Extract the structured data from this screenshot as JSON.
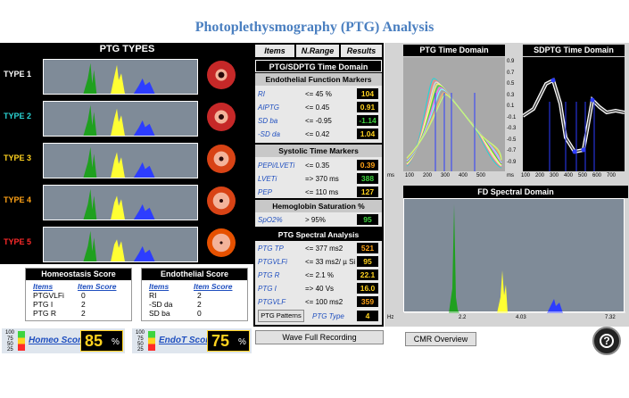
{
  "title": "Photoplethysmography (PTG) Analysis",
  "ptg_types": {
    "header": "PTG TYPES",
    "rows": [
      {
        "label": "TYPE 1",
        "color": "#ffffff",
        "vessel": "#c62828",
        "vessel_icon": "vessel-open-icon"
      },
      {
        "label": "TYPE 2",
        "color": "#2ad4d4",
        "vessel": "#c62828",
        "vessel_icon": "vessel-narrow-icon"
      },
      {
        "label": "TYPE 3",
        "color": "#ffd21f",
        "vessel": "#d84315",
        "vessel_icon": "vessel-plaque-icon"
      },
      {
        "label": "TYPE 4",
        "color": "#ffa216",
        "vessel": "#d84315",
        "vessel_icon": "vessel-plaque-icon"
      },
      {
        "label": "TYPE 5",
        "color": "#ff2a2a",
        "vessel": "#e65100",
        "vessel_icon": "vessel-blocked-icon"
      }
    ]
  },
  "homeostasis": {
    "header": "Homeostasis Score",
    "col_items": "Items",
    "col_score": "Item Score",
    "rows": [
      [
        "PTGVLFi",
        "0"
      ],
      [
        "PTG I",
        "2"
      ],
      [
        "PTG R",
        "2"
      ]
    ],
    "link": "Homeo Score",
    "score": "85",
    "unit": "%"
  },
  "endothelial": {
    "header": "Endothelial Score",
    "col_items": "Items",
    "col_score": "Item Score",
    "rows": [
      [
        "RI",
        "2"
      ],
      [
        "-SD da",
        "2"
      ],
      [
        "SD ba",
        "0"
      ]
    ],
    "link": "EndoT Score",
    "score": "75",
    "unit": "%"
  },
  "gauge": {
    "ticks": [
      "100",
      "75",
      "50",
      "25"
    ]
  },
  "tabs": [
    "Items",
    "N.Range",
    "Results"
  ],
  "time_domain_title": "PTG/SDPTG Time Domain",
  "endothelial_markers": {
    "title": "Endothelial Function Markers",
    "rows": [
      {
        "label": "RI",
        "cond": "<= 45 %",
        "value": "104",
        "color": "#ffd21f"
      },
      {
        "label": "AIPTG",
        "cond": "<= 0.45",
        "value": "0.91",
        "color": "#ffd21f"
      },
      {
        "label": "SD ba",
        "cond": "<= -0.95",
        "value": "-1.14",
        "color": "#3fd43f"
      },
      {
        "label": "-SD da",
        "cond": "<= 0.42",
        "value": "1.04",
        "color": "#ffd21f"
      }
    ]
  },
  "systolic_markers": {
    "title": "Systolic Time Markers",
    "rows": [
      {
        "label": "PEPi/LVETi",
        "cond": "<= 0.35",
        "value": "0.39",
        "color": "#ffa216"
      },
      {
        "label": "LVETi",
        "cond": "=> 370 ms",
        "value": "388",
        "color": "#3fd43f"
      },
      {
        "label": "PEP",
        "cond": "<= 110 ms",
        "value": "127",
        "color": "#ffd21f"
      }
    ]
  },
  "hemoglobin": {
    "title": "Hemoglobin Saturation %",
    "rows": [
      {
        "label": "SpO2%",
        "cond": "> 95%",
        "value": "95",
        "color": "#3fd43f"
      }
    ]
  },
  "spectral": {
    "title": "PTG Spectral Analysis",
    "rows": [
      {
        "label": "PTG TP",
        "cond": "<= 377 ms2",
        "value": "521",
        "color": "#ffa216"
      },
      {
        "label": "PTGVLFi",
        "cond": "<= 33 ms2/ µ Si",
        "value": "95",
        "color": "#ffd21f"
      },
      {
        "label": "PTG R",
        "cond": "<= 2.1 %",
        "value": "22.1",
        "color": "#ffd21f"
      },
      {
        "label": "PTG I",
        "cond": "=> 40 Vs",
        "value": "16.0",
        "color": "#ffd21f"
      },
      {
        "label": "PTGVLF",
        "cond": "<= 100 ms2",
        "value": "359",
        "color": "#ffa216"
      }
    ],
    "patterns_btn": "PTG Patterns",
    "type_label": "PTG Type",
    "type_value": "4"
  },
  "buttons": {
    "wave": "Wave Full Recording",
    "cmr": "CMR Overview"
  },
  "help_icon": "help-icon",
  "charts": {
    "ptg_td": {
      "title": "PTG Time Domain",
      "x_ticks": [
        "ms",
        "100",
        "200",
        "300",
        "400",
        "500"
      ]
    },
    "sdptg_td": {
      "title": "SDPTG Time Domain",
      "y_ticks": [
        "0.9",
        "0.7",
        "0.5",
        "0.3",
        "0.1",
        "-0.1",
        "-0.3",
        "-0.5",
        "-0.7",
        "-0.9"
      ],
      "x_ticks": [
        "ms",
        "100",
        "200",
        "300",
        "400",
        "500",
        "600",
        "700"
      ]
    },
    "fd": {
      "title": "FD Spectral Domain",
      "x_ticks": [
        "Hz",
        "2.2",
        "4.03",
        "7.32"
      ]
    }
  }
}
